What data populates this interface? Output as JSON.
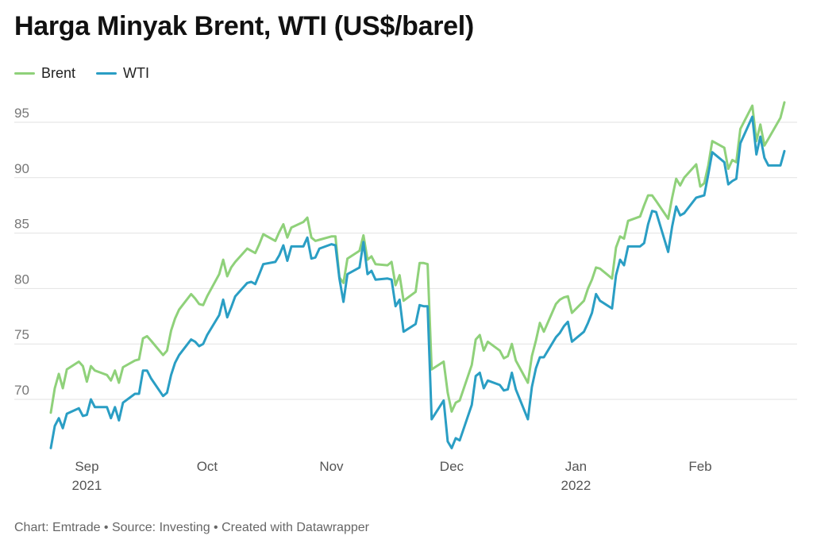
{
  "chart_data": {
    "type": "line",
    "title": "Harga Minyak Brent, WTI (US$/barel)",
    "footer": "Chart: Emtrade • Source: Investing • Created with Datawrapper",
    "ylim": [
      65,
      97
    ],
    "yticks": [
      70,
      75,
      80,
      85,
      90,
      95
    ],
    "xlim": [
      "2021-08-23",
      "2022-02-22"
    ],
    "xticks": [
      {
        "date": "2021-09-01",
        "label": "Sep",
        "year": "2021"
      },
      {
        "date": "2021-10-01",
        "label": "Oct",
        "year": ""
      },
      {
        "date": "2021-11-01",
        "label": "Nov",
        "year": ""
      },
      {
        "date": "2021-12-01",
        "label": "Dec",
        "year": ""
      },
      {
        "date": "2022-01-01",
        "label": "Jan",
        "year": "2022"
      },
      {
        "date": "2022-02-01",
        "label": "Feb",
        "year": ""
      }
    ],
    "grid": true,
    "legend": "top-left",
    "series": [
      {
        "name": "Brent",
        "color": "#8fd17a",
        "points": [
          [
            "2021-08-23",
            68.8
          ],
          [
            "2021-08-24",
            71.0
          ],
          [
            "2021-08-25",
            72.3
          ],
          [
            "2021-08-26",
            71.0
          ],
          [
            "2021-08-27",
            72.7
          ],
          [
            "2021-08-30",
            73.4
          ],
          [
            "2021-08-31",
            73.0
          ],
          [
            "2021-09-01",
            71.6
          ],
          [
            "2021-09-02",
            73.0
          ],
          [
            "2021-09-03",
            72.6
          ],
          [
            "2021-09-06",
            72.2
          ],
          [
            "2021-09-07",
            71.7
          ],
          [
            "2021-09-08",
            72.6
          ],
          [
            "2021-09-09",
            71.5
          ],
          [
            "2021-09-10",
            72.9
          ],
          [
            "2021-09-13",
            73.5
          ],
          [
            "2021-09-14",
            73.6
          ],
          [
            "2021-09-15",
            75.5
          ],
          [
            "2021-09-16",
            75.7
          ],
          [
            "2021-09-17",
            75.3
          ],
          [
            "2021-09-20",
            74.0
          ],
          [
            "2021-09-21",
            74.4
          ],
          [
            "2021-09-22",
            76.2
          ],
          [
            "2021-09-23",
            77.3
          ],
          [
            "2021-09-24",
            78.1
          ],
          [
            "2021-09-27",
            79.5
          ],
          [
            "2021-09-28",
            79.1
          ],
          [
            "2021-09-29",
            78.6
          ],
          [
            "2021-09-30",
            78.5
          ],
          [
            "2021-10-01",
            79.3
          ],
          [
            "2021-10-04",
            81.3
          ],
          [
            "2021-10-05",
            82.6
          ],
          [
            "2021-10-06",
            81.1
          ],
          [
            "2021-10-07",
            81.9
          ],
          [
            "2021-10-08",
            82.4
          ],
          [
            "2021-10-11",
            83.6
          ],
          [
            "2021-10-12",
            83.4
          ],
          [
            "2021-10-13",
            83.2
          ],
          [
            "2021-10-14",
            84.0
          ],
          [
            "2021-10-15",
            84.9
          ],
          [
            "2021-10-18",
            84.3
          ],
          [
            "2021-10-19",
            85.1
          ],
          [
            "2021-10-20",
            85.8
          ],
          [
            "2021-10-21",
            84.6
          ],
          [
            "2021-10-22",
            85.5
          ],
          [
            "2021-10-25",
            86.0
          ],
          [
            "2021-10-26",
            86.4
          ],
          [
            "2021-10-27",
            84.6
          ],
          [
            "2021-10-28",
            84.3
          ],
          [
            "2021-10-29",
            84.4
          ],
          [
            "2021-11-01",
            84.7
          ],
          [
            "2021-11-02",
            84.7
          ],
          [
            "2021-11-03",
            81.0
          ],
          [
            "2021-11-04",
            80.5
          ],
          [
            "2021-11-05",
            82.7
          ],
          [
            "2021-11-08",
            83.4
          ],
          [
            "2021-11-09",
            84.8
          ],
          [
            "2021-11-10",
            82.6
          ],
          [
            "2021-11-11",
            82.9
          ],
          [
            "2021-11-12",
            82.2
          ],
          [
            "2021-11-15",
            82.1
          ],
          [
            "2021-11-16",
            82.4
          ],
          [
            "2021-11-17",
            80.3
          ],
          [
            "2021-11-18",
            81.2
          ],
          [
            "2021-11-19",
            78.9
          ],
          [
            "2021-11-22",
            79.7
          ],
          [
            "2021-11-23",
            82.3
          ],
          [
            "2021-11-24",
            82.3
          ],
          [
            "2021-11-25",
            82.2
          ],
          [
            "2021-11-26",
            72.7
          ],
          [
            "2021-11-29",
            73.4
          ],
          [
            "2021-11-30",
            70.6
          ],
          [
            "2021-12-01",
            68.9
          ],
          [
            "2021-12-02",
            69.7
          ],
          [
            "2021-12-03",
            69.9
          ],
          [
            "2021-12-06",
            73.1
          ],
          [
            "2021-12-07",
            75.4
          ],
          [
            "2021-12-08",
            75.8
          ],
          [
            "2021-12-09",
            74.4
          ],
          [
            "2021-12-10",
            75.2
          ],
          [
            "2021-12-13",
            74.4
          ],
          [
            "2021-12-14",
            73.7
          ],
          [
            "2021-12-15",
            73.9
          ],
          [
            "2021-12-16",
            75.0
          ],
          [
            "2021-12-17",
            73.5
          ],
          [
            "2021-12-20",
            71.5
          ],
          [
            "2021-12-21",
            73.9
          ],
          [
            "2021-12-22",
            75.3
          ],
          [
            "2021-12-23",
            76.9
          ],
          [
            "2021-12-24",
            76.1
          ],
          [
            "2021-12-27",
            78.6
          ],
          [
            "2021-12-28",
            79.0
          ],
          [
            "2021-12-29",
            79.2
          ],
          [
            "2021-12-30",
            79.3
          ],
          [
            "2021-12-31",
            77.8
          ],
          [
            "2022-01-03",
            78.9
          ],
          [
            "2022-01-04",
            80.0
          ],
          [
            "2022-01-05",
            80.8
          ],
          [
            "2022-01-06",
            81.9
          ],
          [
            "2022-01-07",
            81.8
          ],
          [
            "2022-01-10",
            80.9
          ],
          [
            "2022-01-11",
            83.7
          ],
          [
            "2022-01-12",
            84.7
          ],
          [
            "2022-01-13",
            84.5
          ],
          [
            "2022-01-14",
            86.1
          ],
          [
            "2022-01-17",
            86.5
          ],
          [
            "2022-01-18",
            87.5
          ],
          [
            "2022-01-19",
            88.4
          ],
          [
            "2022-01-20",
            88.4
          ],
          [
            "2022-01-21",
            87.9
          ],
          [
            "2022-01-24",
            86.3
          ],
          [
            "2022-01-25",
            88.2
          ],
          [
            "2022-01-26",
            89.9
          ],
          [
            "2022-01-27",
            89.3
          ],
          [
            "2022-01-28",
            90.0
          ],
          [
            "2022-01-31",
            91.2
          ],
          [
            "2022-02-01",
            89.2
          ],
          [
            "2022-02-02",
            89.5
          ],
          [
            "2022-02-03",
            91.1
          ],
          [
            "2022-02-04",
            93.3
          ],
          [
            "2022-02-07",
            92.7
          ],
          [
            "2022-02-08",
            90.8
          ],
          [
            "2022-02-09",
            91.6
          ],
          [
            "2022-02-10",
            91.4
          ],
          [
            "2022-02-11",
            94.4
          ],
          [
            "2022-02-14",
            96.5
          ],
          [
            "2022-02-15",
            93.3
          ],
          [
            "2022-02-16",
            94.8
          ],
          [
            "2022-02-17",
            92.9
          ],
          [
            "2022-02-18",
            93.5
          ],
          [
            "2022-02-21",
            95.4
          ],
          [
            "2022-02-22",
            96.8
          ]
        ]
      },
      {
        "name": "WTI",
        "color": "#2a9ec4",
        "points": [
          [
            "2021-08-23",
            65.6
          ],
          [
            "2021-08-24",
            67.6
          ],
          [
            "2021-08-25",
            68.3
          ],
          [
            "2021-08-26",
            67.4
          ],
          [
            "2021-08-27",
            68.7
          ],
          [
            "2021-08-30",
            69.2
          ],
          [
            "2021-08-31",
            68.5
          ],
          [
            "2021-09-01",
            68.6
          ],
          [
            "2021-09-02",
            70.0
          ],
          [
            "2021-09-03",
            69.3
          ],
          [
            "2021-09-06",
            69.3
          ],
          [
            "2021-09-07",
            68.3
          ],
          [
            "2021-09-08",
            69.3
          ],
          [
            "2021-09-09",
            68.1
          ],
          [
            "2021-09-10",
            69.7
          ],
          [
            "2021-09-13",
            70.5
          ],
          [
            "2021-09-14",
            70.5
          ],
          [
            "2021-09-15",
            72.6
          ],
          [
            "2021-09-16",
            72.6
          ],
          [
            "2021-09-17",
            71.9
          ],
          [
            "2021-09-20",
            70.3
          ],
          [
            "2021-09-21",
            70.6
          ],
          [
            "2021-09-22",
            72.2
          ],
          [
            "2021-09-23",
            73.3
          ],
          [
            "2021-09-24",
            74.0
          ],
          [
            "2021-09-27",
            75.4
          ],
          [
            "2021-09-28",
            75.2
          ],
          [
            "2021-09-29",
            74.8
          ],
          [
            "2021-09-30",
            75.0
          ],
          [
            "2021-10-01",
            75.8
          ],
          [
            "2021-10-04",
            77.6
          ],
          [
            "2021-10-05",
            79.0
          ],
          [
            "2021-10-06",
            77.4
          ],
          [
            "2021-10-07",
            78.3
          ],
          [
            "2021-10-08",
            79.3
          ],
          [
            "2021-10-11",
            80.5
          ],
          [
            "2021-10-12",
            80.6
          ],
          [
            "2021-10-13",
            80.4
          ],
          [
            "2021-10-14",
            81.3
          ],
          [
            "2021-10-15",
            82.2
          ],
          [
            "2021-10-18",
            82.4
          ],
          [
            "2021-10-19",
            83.0
          ],
          [
            "2021-10-20",
            83.9
          ],
          [
            "2021-10-21",
            82.5
          ],
          [
            "2021-10-22",
            83.8
          ],
          [
            "2021-10-25",
            83.8
          ],
          [
            "2021-10-26",
            84.6
          ],
          [
            "2021-10-27",
            82.7
          ],
          [
            "2021-10-28",
            82.8
          ],
          [
            "2021-10-29",
            83.6
          ],
          [
            "2021-11-01",
            84.0
          ],
          [
            "2021-11-02",
            83.9
          ],
          [
            "2021-11-03",
            80.9
          ],
          [
            "2021-11-04",
            78.8
          ],
          [
            "2021-11-05",
            81.3
          ],
          [
            "2021-11-08",
            81.9
          ],
          [
            "2021-11-09",
            84.2
          ],
          [
            "2021-11-10",
            81.3
          ],
          [
            "2021-11-11",
            81.6
          ],
          [
            "2021-11-12",
            80.8
          ],
          [
            "2021-11-15",
            80.9
          ],
          [
            "2021-11-16",
            80.8
          ],
          [
            "2021-11-17",
            78.4
          ],
          [
            "2021-11-18",
            79.0
          ],
          [
            "2021-11-19",
            76.1
          ],
          [
            "2021-11-22",
            76.8
          ],
          [
            "2021-11-23",
            78.5
          ],
          [
            "2021-11-24",
            78.4
          ],
          [
            "2021-11-25",
            78.4
          ],
          [
            "2021-11-26",
            68.2
          ],
          [
            "2021-11-29",
            69.9
          ],
          [
            "2021-11-30",
            66.2
          ],
          [
            "2021-12-01",
            65.6
          ],
          [
            "2021-12-02",
            66.5
          ],
          [
            "2021-12-03",
            66.3
          ],
          [
            "2021-12-06",
            69.5
          ],
          [
            "2021-12-07",
            72.1
          ],
          [
            "2021-12-08",
            72.4
          ],
          [
            "2021-12-09",
            71.0
          ],
          [
            "2021-12-10",
            71.7
          ],
          [
            "2021-12-13",
            71.3
          ],
          [
            "2021-12-14",
            70.8
          ],
          [
            "2021-12-15",
            70.9
          ],
          [
            "2021-12-16",
            72.4
          ],
          [
            "2021-12-17",
            70.9
          ],
          [
            "2021-12-20",
            68.2
          ],
          [
            "2021-12-21",
            71.1
          ],
          [
            "2021-12-22",
            72.8
          ],
          [
            "2021-12-23",
            73.8
          ],
          [
            "2021-12-24",
            73.8
          ],
          [
            "2021-12-27",
            75.6
          ],
          [
            "2021-12-28",
            76.0
          ],
          [
            "2021-12-29",
            76.6
          ],
          [
            "2021-12-30",
            77.0
          ],
          [
            "2021-12-31",
            75.2
          ],
          [
            "2022-01-03",
            76.1
          ],
          [
            "2022-01-04",
            76.9
          ],
          [
            "2022-01-05",
            77.8
          ],
          [
            "2022-01-06",
            79.5
          ],
          [
            "2022-01-07",
            78.9
          ],
          [
            "2022-01-10",
            78.2
          ],
          [
            "2022-01-11",
            81.2
          ],
          [
            "2022-01-12",
            82.6
          ],
          [
            "2022-01-13",
            82.1
          ],
          [
            "2022-01-14",
            83.8
          ],
          [
            "2022-01-17",
            83.8
          ],
          [
            "2022-01-18",
            84.1
          ],
          [
            "2022-01-19",
            85.8
          ],
          [
            "2022-01-20",
            87.0
          ],
          [
            "2022-01-21",
            86.9
          ],
          [
            "2022-01-24",
            83.3
          ],
          [
            "2022-01-25",
            85.6
          ],
          [
            "2022-01-26",
            87.4
          ],
          [
            "2022-01-27",
            86.6
          ],
          [
            "2022-01-28",
            86.8
          ],
          [
            "2022-01-31",
            88.2
          ],
          [
            "2022-02-01",
            88.3
          ],
          [
            "2022-02-02",
            88.4
          ],
          [
            "2022-02-03",
            90.3
          ],
          [
            "2022-02-04",
            92.3
          ],
          [
            "2022-02-07",
            91.4
          ],
          [
            "2022-02-08",
            89.4
          ],
          [
            "2022-02-09",
            89.7
          ],
          [
            "2022-02-10",
            89.9
          ],
          [
            "2022-02-11",
            93.1
          ],
          [
            "2022-02-14",
            95.5
          ],
          [
            "2022-02-15",
            92.1
          ],
          [
            "2022-02-16",
            93.7
          ],
          [
            "2022-02-17",
            91.8
          ],
          [
            "2022-02-18",
            91.1
          ],
          [
            "2022-02-21",
            91.1
          ],
          [
            "2022-02-22",
            92.4
          ]
        ]
      }
    ]
  }
}
